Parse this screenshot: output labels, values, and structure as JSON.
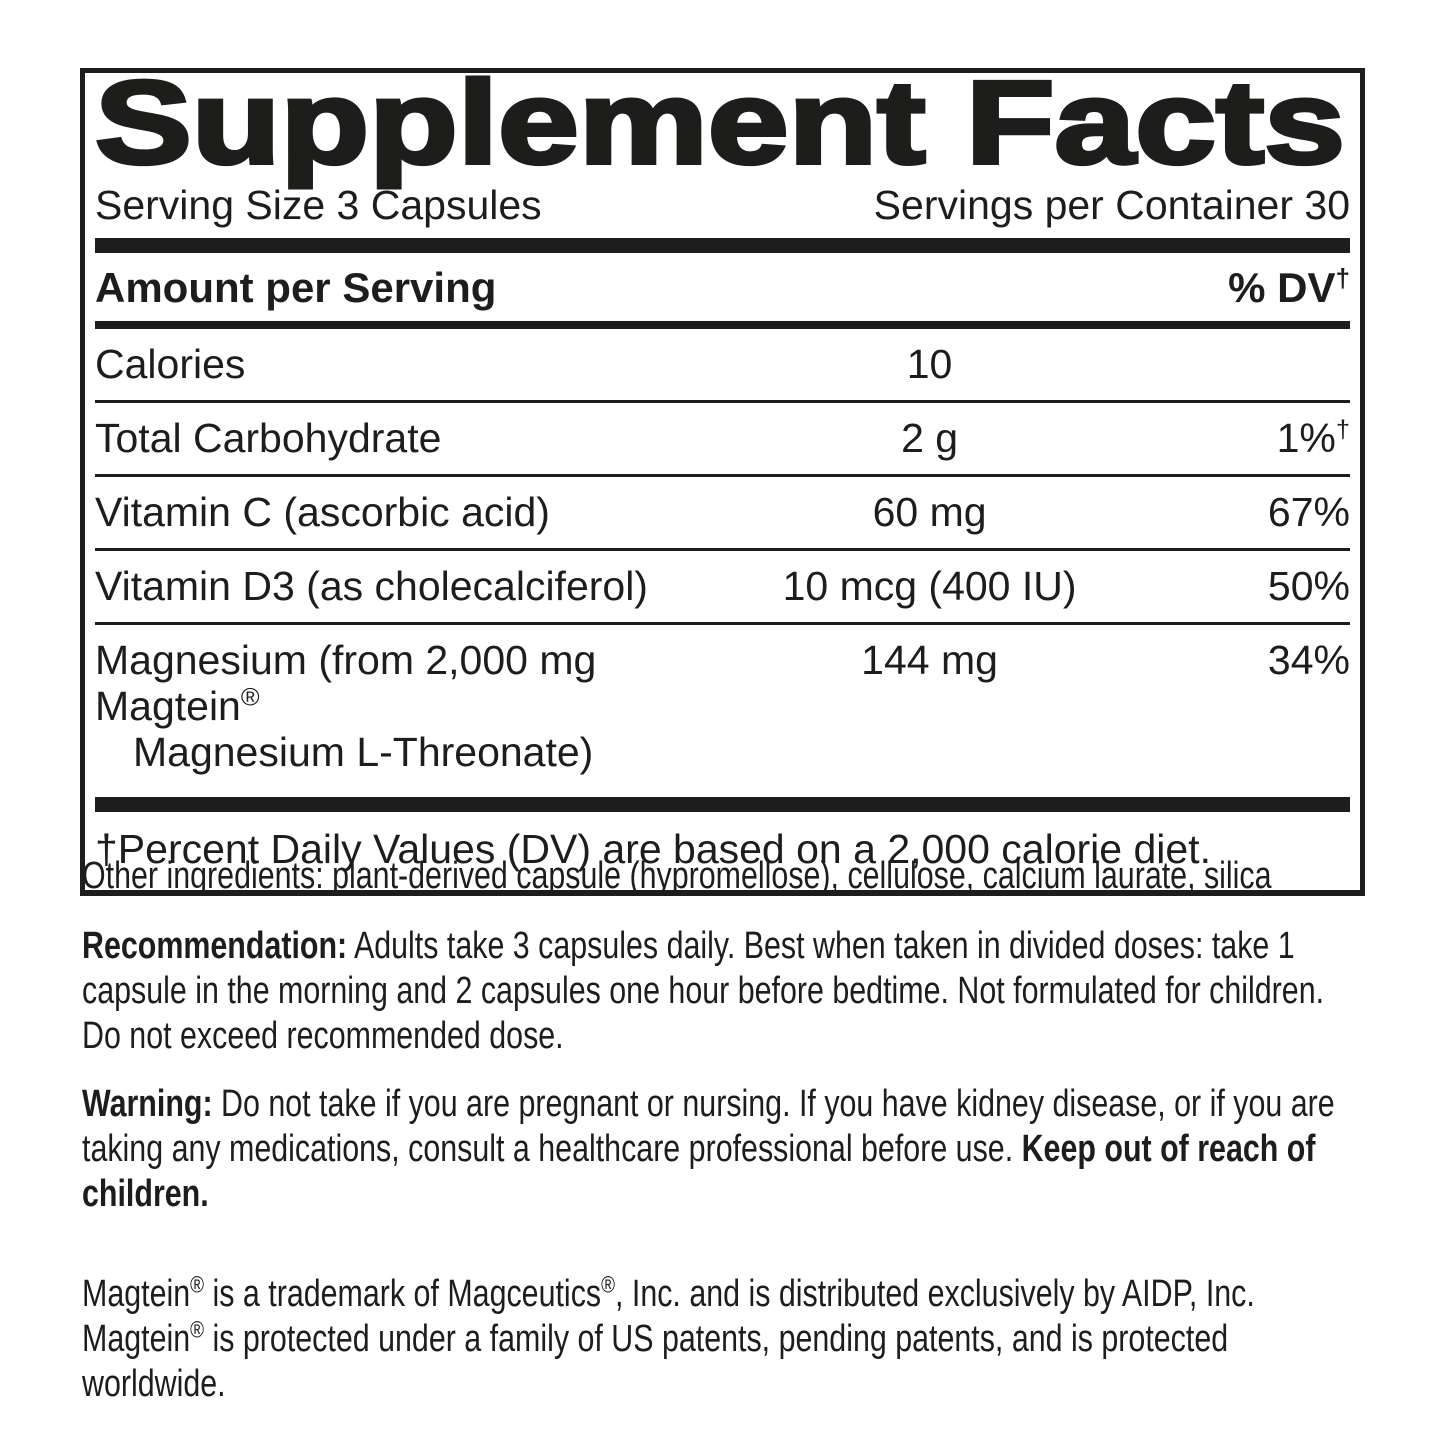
{
  "colors": {
    "ink": "#1d1d1b",
    "background": "#ffffff"
  },
  "panel": {
    "title": "Supplement Facts",
    "serving_size": "Serving Size 3 Capsules",
    "servings_per_container": "Servings per Container 30",
    "column_header": "Amount per Serving",
    "dv_header": [
      {
        "t": "% DV"
      },
      {
        "sup": "†"
      }
    ],
    "rows": [
      {
        "name": "Calories",
        "amount": "10",
        "dv": ""
      },
      {
        "name": "Total Carbohydrate",
        "amount": "2 g",
        "dv_rich": [
          {
            "t": "1%"
          },
          {
            "sup": "†"
          }
        ]
      },
      {
        "name": "Vitamin C (ascorbic acid)",
        "amount": "60 mg",
        "dv": "67%"
      },
      {
        "name": "Vitamin D3 (as cholecalciferol)",
        "amount": "10 mcg (400 IU)",
        "dv": "50%"
      },
      {
        "name_rich": [
          {
            "t": "Magnesium (from 2,000 mg Magtein"
          },
          {
            "sup": "®"
          }
        ],
        "name_line2": "Magnesium L-Threonate)",
        "amount": "144 mg",
        "dv": "34%"
      }
    ],
    "footnote": "†Percent Daily Values (DV) are based on a 2,000 calorie diet."
  },
  "other_ingredients": "Other ingredients: plant-derived capsule (hypromellose), cellulose, calcium laurate, silica",
  "recommendation": [
    {
      "b": "Recommendation:"
    },
    {
      "t": " Adults take 3 capsules daily. Best when taken in divided doses: take 1 capsule in the morning and 2 capsules one hour before bedtime. Not formulated for children. Do not exceed recommended dose."
    }
  ],
  "warning": [
    {
      "b": "Warning:"
    },
    {
      "t": " Do not take if you are pregnant or nursing. If you have kidney disease, or if you are taking any medications, consult a healthcare professional before use. "
    },
    {
      "b": "Keep out of reach of children."
    }
  ],
  "trademark": [
    {
      "t": "Magtein"
    },
    {
      "sup": "®"
    },
    {
      "t": " is a trademark of Magceutics"
    },
    {
      "sup": "®"
    },
    {
      "t": ", Inc. and is distributed exclusively by AIDP, Inc. Magtein"
    },
    {
      "sup": "®"
    },
    {
      "t": " is protected under a family of US patents, pending patents, and is protected worldwide."
    }
  ]
}
